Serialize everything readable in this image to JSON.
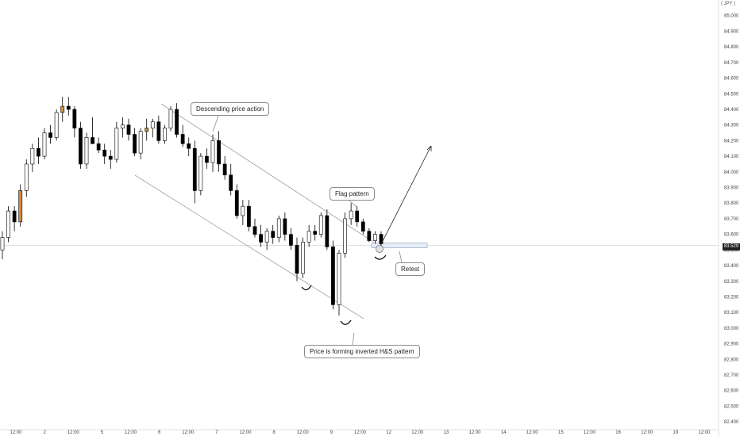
{
  "currency_label": "( JPY )",
  "current_price_label": "83.529",
  "colors": {
    "up": "#ffffff",
    "down": "#000000",
    "accent": "#d98b36",
    "wick": "#000000",
    "channel": "#a0a0a0",
    "grid": "#bfbfbf"
  },
  "annotations": {
    "descending": "Descending price action",
    "flag": "Flag pattern",
    "retest": "Retest",
    "hs": "Price is forming inverted H&S pattern"
  },
  "chart_data": {
    "type": "candlestick",
    "y_axis": {
      "range": [
        82.35,
        85.1
      ],
      "ticks": [
        "85.000",
        "84.900",
        "84.800",
        "84.700",
        "84.600",
        "84.500",
        "84.400",
        "84.300",
        "84.200",
        "84.100",
        "84.000",
        "83.900",
        "83.800",
        "83.700",
        "83.600",
        "83.500",
        "83.400",
        "83.300",
        "83.200",
        "83.100",
        "83.000",
        "82.900",
        "82.800",
        "82.700",
        "82.600",
        "82.500",
        "82.400"
      ]
    },
    "x_axis": {
      "ticks": [
        "12:00",
        "2",
        "12:00",
        "5",
        "12:00",
        "6",
        "12:00",
        "7",
        "12:00",
        "8",
        "12:00",
        "9",
        "12:00",
        "12",
        "12:00",
        "13",
        "12:00",
        "14",
        "12:00",
        "15",
        "12:00",
        "16",
        "12:00",
        "19",
        "12:00"
      ]
    },
    "support_level": 83.529,
    "candles": [
      {
        "o": 83.5,
        "h": 83.62,
        "l": 83.44,
        "c": 83.58
      },
      {
        "o": 83.58,
        "h": 83.78,
        "l": 83.55,
        "c": 83.75
      },
      {
        "o": 83.75,
        "h": 83.78,
        "l": 83.62,
        "c": 83.68
      },
      {
        "o": 83.68,
        "h": 83.92,
        "l": 83.65,
        "c": 83.88
      },
      {
        "o": 83.88,
        "h": 84.08,
        "l": 83.84,
        "c": 84.05
      },
      {
        "o": 84.05,
        "h": 84.18,
        "l": 84.0,
        "c": 84.15
      },
      {
        "o": 84.15,
        "h": 84.22,
        "l": 84.05,
        "c": 84.1
      },
      {
        "o": 84.1,
        "h": 84.28,
        "l": 84.08,
        "c": 84.25
      },
      {
        "o": 84.25,
        "h": 84.3,
        "l": 84.18,
        "c": 84.22
      },
      {
        "o": 84.22,
        "h": 84.4,
        "l": 84.2,
        "c": 84.38
      },
      {
        "o": 84.38,
        "h": 84.48,
        "l": 84.32,
        "c": 84.42
      },
      {
        "o": 84.42,
        "h": 84.48,
        "l": 84.36,
        "c": 84.4
      },
      {
        "o": 84.4,
        "h": 84.42,
        "l": 84.22,
        "c": 84.28
      },
      {
        "o": 84.28,
        "h": 84.32,
        "l": 84.02,
        "c": 84.05
      },
      {
        "o": 84.05,
        "h": 84.25,
        "l": 84.02,
        "c": 84.22
      },
      {
        "o": 84.22,
        "h": 84.35,
        "l": 84.18,
        "c": 84.18
      },
      {
        "o": 84.18,
        "h": 84.22,
        "l": 84.12,
        "c": 84.14
      },
      {
        "o": 84.14,
        "h": 84.18,
        "l": 84.05,
        "c": 84.1
      },
      {
        "o": 84.1,
        "h": 84.14,
        "l": 84.02,
        "c": 84.08
      },
      {
        "o": 84.08,
        "h": 84.32,
        "l": 84.06,
        "c": 84.28
      },
      {
        "o": 84.28,
        "h": 84.35,
        "l": 84.22,
        "c": 84.3
      },
      {
        "o": 84.3,
        "h": 84.34,
        "l": 84.2,
        "c": 84.24
      },
      {
        "o": 84.24,
        "h": 84.28,
        "l": 84.1,
        "c": 84.12
      },
      {
        "o": 84.12,
        "h": 84.28,
        "l": 84.08,
        "c": 84.26
      },
      {
        "o": 84.26,
        "h": 84.34,
        "l": 84.2,
        "c": 84.28
      },
      {
        "o": 84.28,
        "h": 84.34,
        "l": 84.22,
        "c": 84.32
      },
      {
        "o": 84.32,
        "h": 84.36,
        "l": 84.18,
        "c": 84.2
      },
      {
        "o": 84.2,
        "h": 84.3,
        "l": 84.18,
        "c": 84.28
      },
      {
        "o": 84.28,
        "h": 84.42,
        "l": 84.26,
        "c": 84.4
      },
      {
        "o": 84.4,
        "h": 84.44,
        "l": 84.22,
        "c": 84.24
      },
      {
        "o": 84.24,
        "h": 84.3,
        "l": 84.16,
        "c": 84.18
      },
      {
        "o": 84.18,
        "h": 84.22,
        "l": 84.1,
        "c": 84.15
      },
      {
        "o": 84.15,
        "h": 84.2,
        "l": 83.8,
        "c": 83.88
      },
      {
        "o": 83.88,
        "h": 84.12,
        "l": 83.85,
        "c": 84.1
      },
      {
        "o": 84.1,
        "h": 84.15,
        "l": 84.02,
        "c": 84.06
      },
      {
        "o": 84.06,
        "h": 84.24,
        "l": 84.0,
        "c": 84.2
      },
      {
        "o": 84.2,
        "h": 84.26,
        "l": 84.0,
        "c": 84.05
      },
      {
        "o": 84.05,
        "h": 84.1,
        "l": 83.95,
        "c": 83.98
      },
      {
        "o": 83.98,
        "h": 84.05,
        "l": 83.85,
        "c": 83.88
      },
      {
        "o": 83.88,
        "h": 83.92,
        "l": 83.7,
        "c": 83.72
      },
      {
        "o": 83.72,
        "h": 83.82,
        "l": 83.66,
        "c": 83.78
      },
      {
        "o": 83.78,
        "h": 83.82,
        "l": 83.62,
        "c": 83.65
      },
      {
        "o": 83.65,
        "h": 83.7,
        "l": 83.58,
        "c": 83.6
      },
      {
        "o": 83.6,
        "h": 83.66,
        "l": 83.52,
        "c": 83.55
      },
      {
        "o": 83.55,
        "h": 83.64,
        "l": 83.5,
        "c": 83.62
      },
      {
        "o": 83.62,
        "h": 83.66,
        "l": 83.54,
        "c": 83.58
      },
      {
        "o": 83.58,
        "h": 83.72,
        "l": 83.55,
        "c": 83.7
      },
      {
        "o": 83.7,
        "h": 83.74,
        "l": 83.56,
        "c": 83.6
      },
      {
        "o": 83.6,
        "h": 83.64,
        "l": 83.5,
        "c": 83.53
      },
      {
        "o": 83.53,
        "h": 83.58,
        "l": 83.3,
        "c": 83.35
      },
      {
        "o": 83.35,
        "h": 83.58,
        "l": 83.32,
        "c": 83.55
      },
      {
        "o": 83.55,
        "h": 83.66,
        "l": 83.52,
        "c": 83.62
      },
      {
        "o": 83.62,
        "h": 83.66,
        "l": 83.56,
        "c": 83.6
      },
      {
        "o": 83.6,
        "h": 83.74,
        "l": 83.58,
        "c": 83.72
      },
      {
        "o": 83.72,
        "h": 83.76,
        "l": 83.5,
        "c": 83.52
      },
      {
        "o": 83.52,
        "h": 83.56,
        "l": 83.12,
        "c": 83.15
      },
      {
        "o": 83.15,
        "h": 83.5,
        "l": 83.08,
        "c": 83.48
      },
      {
        "o": 83.48,
        "h": 83.74,
        "l": 83.45,
        "c": 83.7
      },
      {
        "o": 83.7,
        "h": 83.8,
        "l": 83.66,
        "c": 83.75
      },
      {
        "o": 83.75,
        "h": 83.78,
        "l": 83.65,
        "c": 83.68
      },
      {
        "o": 83.68,
        "h": 83.7,
        "l": 83.6,
        "c": 83.62
      },
      {
        "o": 83.62,
        "h": 83.64,
        "l": 83.55,
        "c": 83.56
      },
      {
        "o": 83.56,
        "h": 83.62,
        "l": 83.54,
        "c": 83.6
      },
      {
        "o": 83.6,
        "h": 83.62,
        "l": 83.52,
        "c": 83.54
      }
    ]
  }
}
